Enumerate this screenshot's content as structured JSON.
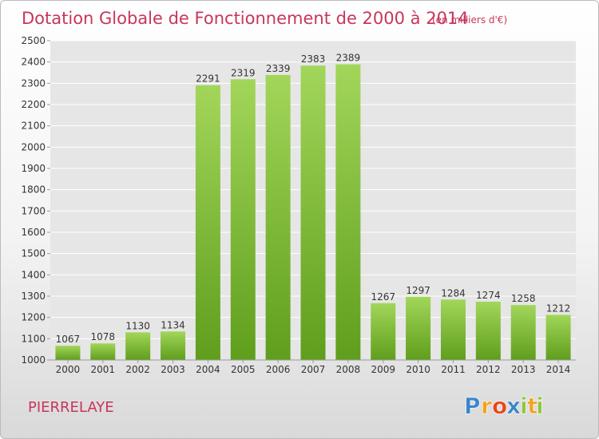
{
  "chart_data": {
    "type": "bar",
    "title": "Dotation Globale de Fonctionnement de 2000 à 2014",
    "subtitle": "(en milliers d'€)",
    "categories": [
      "2000",
      "2001",
      "2002",
      "2003",
      "2004",
      "2005",
      "2006",
      "2007",
      "2008",
      "2009",
      "2010",
      "2011",
      "2012",
      "2013",
      "2014"
    ],
    "values": [
      1067,
      1078,
      1130,
      1134,
      2291,
      2319,
      2339,
      2383,
      2389,
      1267,
      1297,
      1284,
      1274,
      1258,
      1212
    ],
    "ylim": [
      1000,
      2500
    ],
    "yticks": [
      1000,
      1100,
      1200,
      1300,
      1400,
      1500,
      1600,
      1700,
      1800,
      1900,
      2000,
      2100,
      2200,
      2300,
      2400,
      2500
    ],
    "grid": true,
    "bar_color": "#7cbf2e",
    "bar_color_light": "#a2d65a",
    "bar_color_dark": "#5f9e1c"
  },
  "place_name": "PIERRELAYE",
  "logo": {
    "letters": [
      "P",
      "r",
      "o",
      "x",
      "i",
      "t",
      "i"
    ],
    "colors": [
      "#3a86c8",
      "#f2a21c",
      "#e8461a",
      "#3a86c8",
      "#8cc63f",
      "#f2a21c",
      "#8cc63f"
    ]
  },
  "colors": {
    "title": "#c8365a",
    "grid": "#ffffff",
    "plot_background": "#e6e6e6"
  }
}
